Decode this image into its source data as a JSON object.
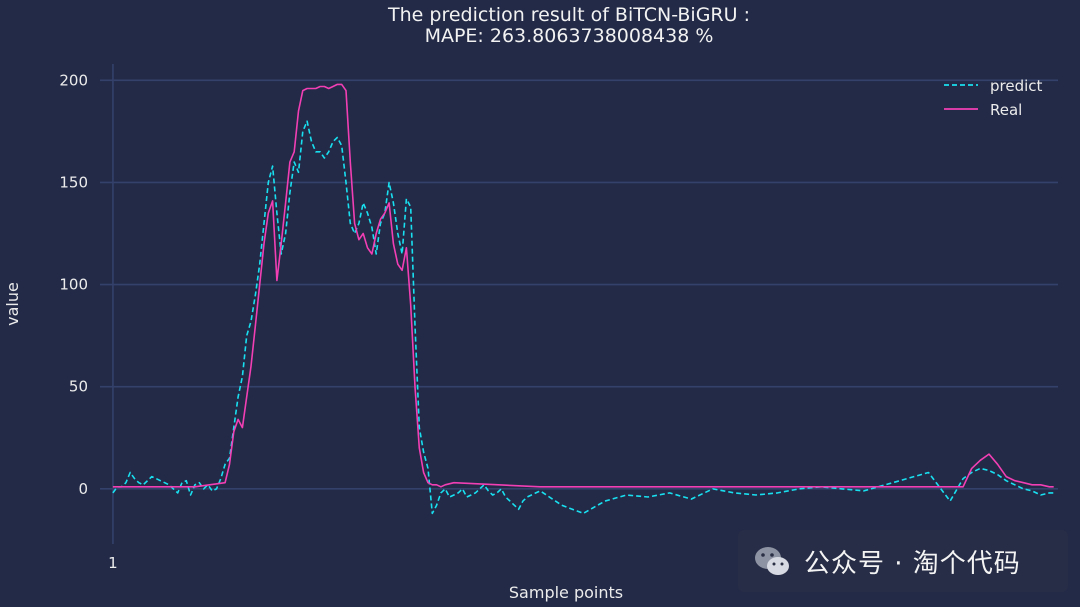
{
  "chart_data": {
    "type": "line",
    "title_line1": "The prediction result of BiTCN-BiGRU :",
    "title_line2": "MAPE: 263.8063738008438 %",
    "xlabel": "Sample points",
    "ylabel": "value",
    "xtick_label": "1",
    "ylim": [
      -27,
      208
    ],
    "xlim": [
      -2,
      220
    ],
    "yticks": [
      0,
      50,
      100,
      150,
      200
    ],
    "grid": true,
    "legend_position": "top-right",
    "series": [
      {
        "name": "predict",
        "style": "dashed",
        "color": "#19e0f0",
        "x": [
          1,
          2,
          3,
          4,
          5,
          6,
          7,
          8,
          9,
          10,
          11,
          12,
          13,
          14,
          15,
          16,
          17,
          18,
          19,
          20,
          21,
          22,
          23,
          24,
          25,
          26,
          27,
          28,
          29,
          30,
          31,
          32,
          33,
          34,
          35,
          36,
          37,
          38,
          39,
          40,
          41,
          42,
          43,
          44,
          45,
          46,
          47,
          48,
          49,
          50,
          51,
          52,
          53,
          54,
          55,
          56,
          57,
          58,
          59,
          60,
          61,
          62,
          63,
          64,
          65,
          66,
          67,
          68,
          69,
          70,
          71,
          72,
          73,
          74,
          75,
          76,
          77,
          78,
          79,
          80,
          81,
          82,
          83,
          84,
          85,
          86,
          87,
          88,
          89,
          90,
          91,
          92,
          93,
          94,
          95,
          96,
          97,
          98,
          99,
          100,
          105,
          110,
          115,
          120,
          125,
          130,
          135,
          140,
          145,
          150,
          155,
          160,
          165,
          170,
          175,
          180,
          185,
          190,
          195,
          198,
          200,
          202,
          204,
          206,
          208,
          210,
          212,
          214,
          216,
          218,
          219
        ],
        "y": [
          -2,
          1,
          1,
          3,
          8,
          5,
          3,
          2,
          4,
          6,
          5,
          4,
          3,
          2,
          0,
          -2,
          3,
          4,
          -3,
          2,
          3,
          0,
          2,
          -1,
          0,
          5,
          12,
          15,
          30,
          45,
          55,
          75,
          82,
          95,
          110,
          130,
          150,
          158,
          135,
          115,
          125,
          145,
          160,
          155,
          175,
          180,
          170,
          165,
          165,
          162,
          165,
          170,
          172,
          168,
          150,
          130,
          125,
          130,
          140,
          135,
          128,
          115,
          130,
          135,
          150,
          140,
          125,
          115,
          142,
          138,
          80,
          30,
          18,
          10,
          -12,
          -8,
          -2,
          0,
          -4,
          -3,
          -2,
          0,
          -4,
          -3,
          -2,
          0,
          2,
          -1,
          -3,
          -2,
          0,
          -4,
          -6,
          -8,
          -10,
          -6,
          -4,
          -3,
          -2,
          -1,
          -8,
          -12,
          -6,
          -3,
          -4,
          -2,
          -5,
          0,
          -2,
          -3,
          -2,
          0,
          1,
          0,
          -1,
          2,
          5,
          8,
          -6,
          5,
          8,
          10,
          9,
          7,
          4,
          2,
          0,
          -1,
          -3,
          -2,
          -2
        ]
      },
      {
        "name": "Real",
        "style": "solid",
        "color": "#f23fb4",
        "x": [
          1,
          10,
          20,
          27,
          28,
          29,
          30,
          31,
          32,
          33,
          34,
          35,
          36,
          37,
          38,
          39,
          40,
          41,
          42,
          43,
          44,
          45,
          46,
          47,
          48,
          49,
          50,
          51,
          52,
          53,
          54,
          55,
          56,
          57,
          58,
          59,
          60,
          61,
          62,
          63,
          64,
          65,
          66,
          67,
          68,
          69,
          70,
          71,
          72,
          73,
          74,
          75,
          76,
          77,
          78,
          80,
          100,
          120,
          140,
          160,
          170,
          175,
          180,
          185,
          190,
          195,
          198,
          200,
          202,
          204,
          206,
          208,
          210,
          212,
          214,
          216,
          218,
          219
        ],
        "y": [
          1,
          1,
          1,
          3,
          12,
          28,
          34,
          30,
          45,
          60,
          80,
          100,
          120,
          135,
          141,
          102,
          120,
          140,
          160,
          165,
          185,
          195,
          196,
          196,
          196,
          197,
          197,
          196,
          197,
          198,
          198,
          195,
          160,
          130,
          122,
          125,
          118,
          115,
          125,
          132,
          135,
          140,
          120,
          110,
          107,
          118,
          90,
          50,
          20,
          8,
          3,
          2,
          2,
          1,
          2,
          3,
          1,
          1,
          1,
          1,
          1,
          1,
          1,
          1,
          1,
          1,
          1,
          10,
          14,
          17,
          12,
          6,
          4,
          3,
          2,
          2,
          1,
          1
        ]
      }
    ]
  },
  "watermark": {
    "text": "公众号 · 淘个代码",
    "icon": "wechat-icon"
  }
}
